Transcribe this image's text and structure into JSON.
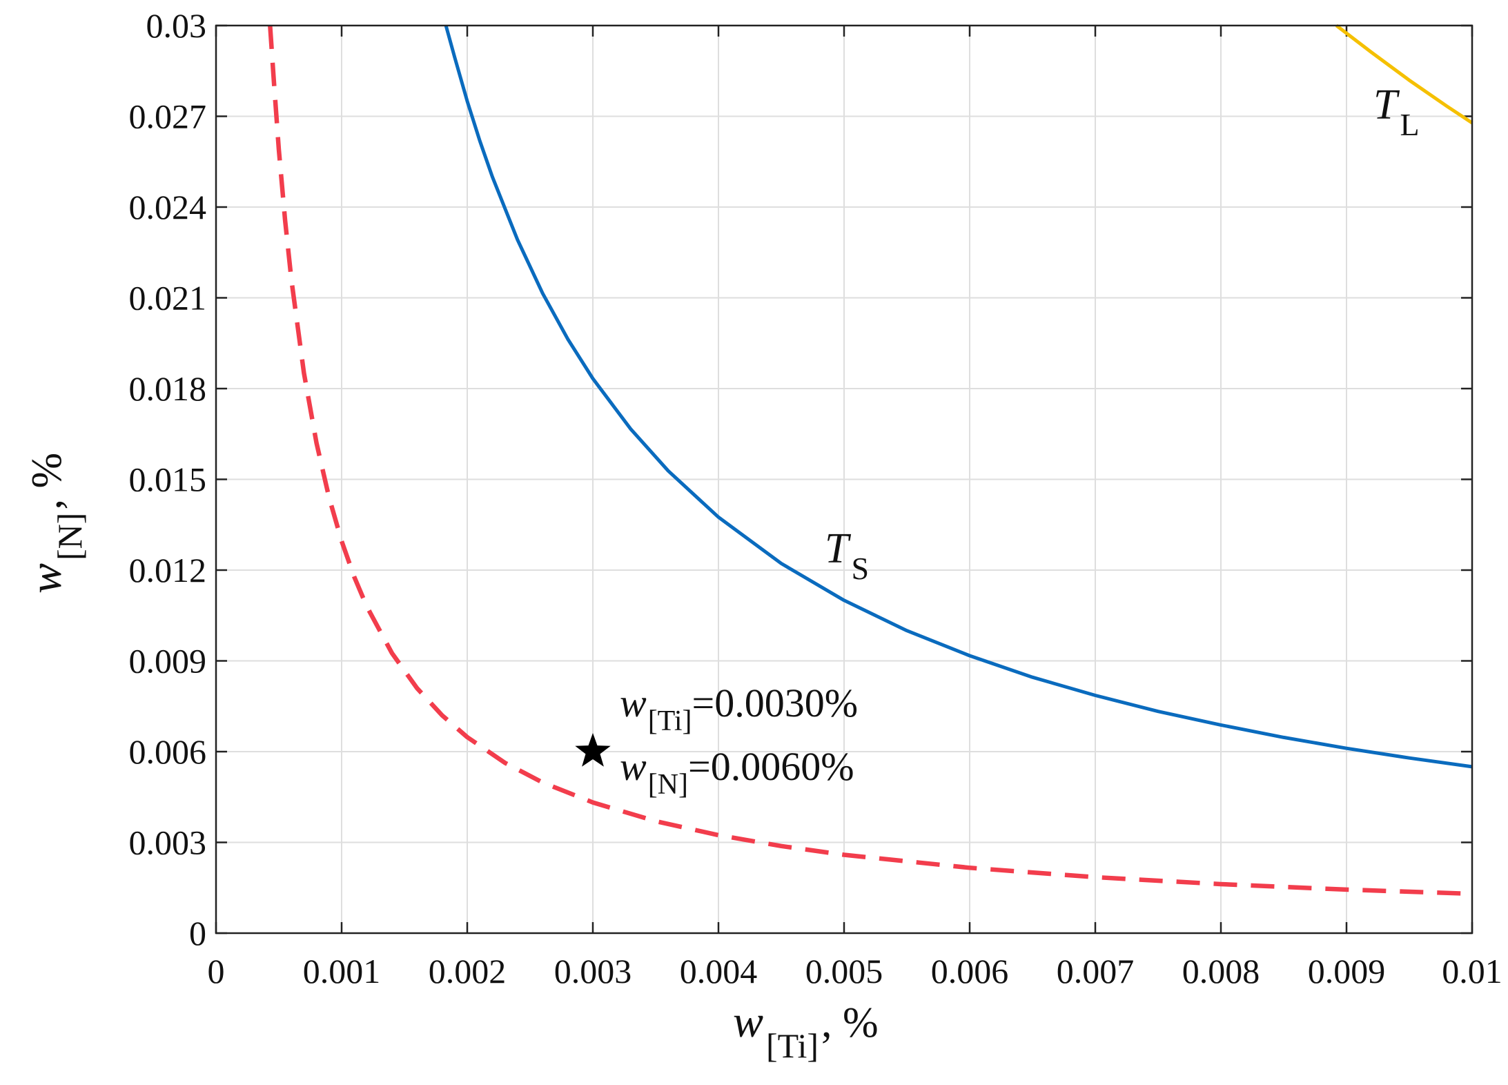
{
  "chart_data": {
    "type": "line",
    "xlabel": {
      "main": "w",
      "sub": "[Ti]",
      "unit": ", %"
    },
    "ylabel": {
      "main": "w",
      "sub": "[N]",
      "unit": ", %"
    },
    "xlim": [
      0,
      0.01
    ],
    "ylim": [
      0,
      0.03
    ],
    "grid": true,
    "x_ticks": [
      0,
      0.001,
      0.002,
      0.003,
      0.004,
      0.005,
      0.006,
      0.007,
      0.008,
      0.009,
      0.01
    ],
    "x_tick_labels": [
      "0",
      "0.001",
      "0.002",
      "0.003",
      "0.004",
      "0.005",
      "0.006",
      "0.007",
      "0.008",
      "0.009",
      "0.01"
    ],
    "y_ticks": [
      0,
      0.003,
      0.006,
      0.009,
      0.012,
      0.015,
      0.018,
      0.021,
      0.024,
      0.027,
      0.03
    ],
    "y_tick_labels": [
      "0",
      "0.003",
      "0.006",
      "0.009",
      "0.012",
      "0.015",
      "0.018",
      "0.021",
      "0.024",
      "0.027",
      "0.03"
    ],
    "series": [
      {
        "label_main": "T",
        "label_sub": "L",
        "color": "#F5C000",
        "style": "solid",
        "x": [
          0.00892,
          0.0092,
          0.0095,
          0.0098,
          0.01
        ],
        "y": [
          0.03,
          0.02911,
          0.02819,
          0.02733,
          0.02678
        ]
      },
      {
        "label_main": "T",
        "label_sub": "S",
        "color": "#0A6BBE",
        "style": "solid",
        "x": [
          0.00183,
          0.0019,
          0.002,
          0.0021,
          0.0022,
          0.0024,
          0.0026,
          0.0028,
          0.003,
          0.0033,
          0.0036,
          0.004,
          0.0045,
          0.005,
          0.0055,
          0.006,
          0.0065,
          0.007,
          0.0075,
          0.008,
          0.0085,
          0.009,
          0.0095,
          0.01
        ],
        "y": [
          0.03,
          0.02895,
          0.0275,
          0.02619,
          0.025,
          0.02292,
          0.02115,
          0.01964,
          0.01833,
          0.01667,
          0.01528,
          0.01375,
          0.01222,
          0.011,
          0.01,
          0.00917,
          0.00846,
          0.00786,
          0.00733,
          0.00688,
          0.00647,
          0.00611,
          0.00579,
          0.0055
        ]
      },
      {
        "color": "#F23D4C",
        "style": "dashed",
        "x": [
          0.00043,
          0.00046,
          0.0005,
          0.00055,
          0.0006,
          0.0007,
          0.0008,
          0.0009,
          0.001,
          0.0011,
          0.0012,
          0.0014,
          0.0016,
          0.0018,
          0.002,
          0.0023,
          0.0026,
          0.003,
          0.0035,
          0.004,
          0.0045,
          0.005,
          0.006,
          0.007,
          0.008,
          0.009,
          0.01
        ],
        "y": [
          0.03,
          0.0282,
          0.0259,
          0.02356,
          0.0216,
          0.01851,
          0.0162,
          0.0144,
          0.01296,
          0.01178,
          0.0108,
          0.00926,
          0.0081,
          0.0072,
          0.00648,
          0.00563,
          0.00498,
          0.00432,
          0.0037,
          0.00324,
          0.00288,
          0.00259,
          0.00216,
          0.00185,
          0.00162,
          0.00144,
          0.0013
        ]
      }
    ],
    "point": {
      "x": 0.003,
      "y": 0.006,
      "marker": "star",
      "color": "#000000",
      "label_ti": {
        "main": "w",
        "sub": "[Ti]",
        "value": "=0.0030%"
      },
      "label_n": {
        "main": "w",
        "sub": "[N]",
        "value": "=0.0060%"
      }
    }
  }
}
